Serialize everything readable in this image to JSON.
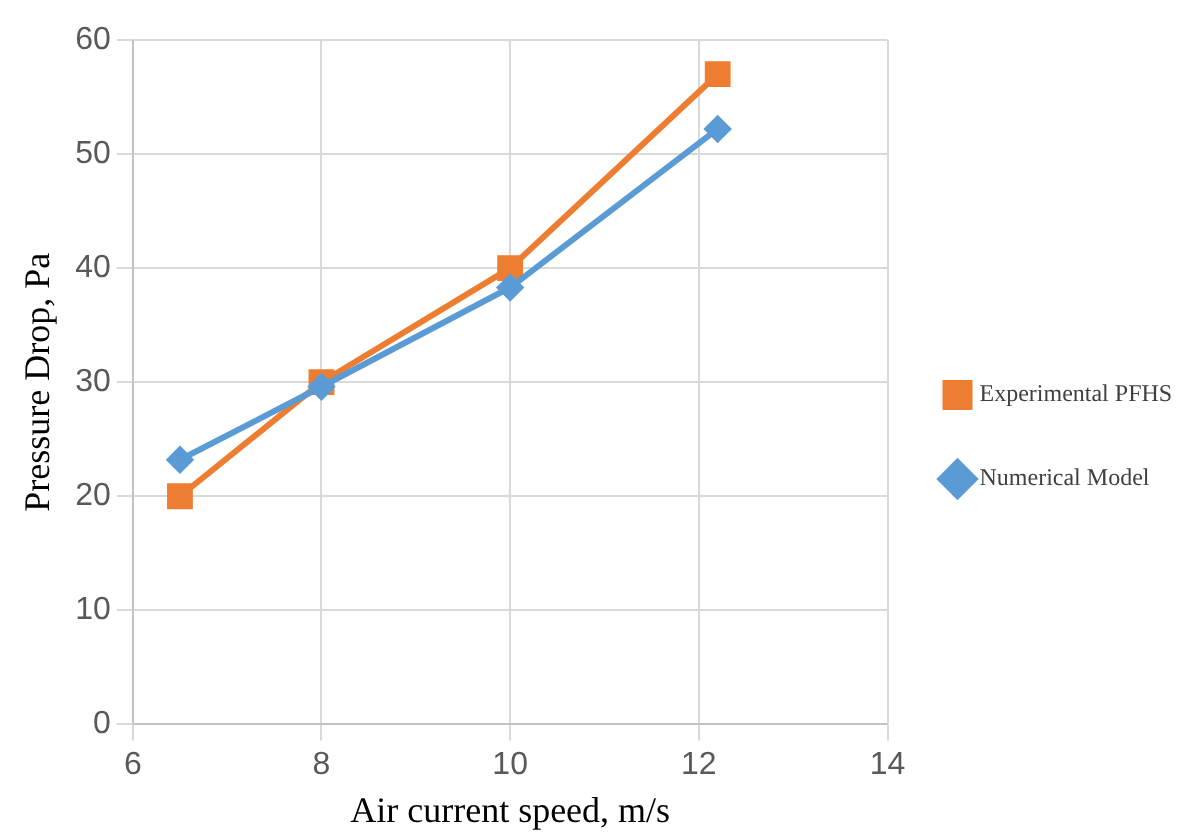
{
  "chart_data": {
    "type": "line",
    "xlabel": "Air current speed, m/s",
    "ylabel": "Pressure Drop, Pa",
    "x": [
      6.5,
      8,
      10,
      12.2
    ],
    "series": [
      {
        "name": "Experimental PFHS",
        "color": "#ed7d31",
        "marker": "square",
        "values": [
          20,
          30,
          40,
          57
        ]
      },
      {
        "name": "Numerical Model",
        "color": "#5b9bd5",
        "marker": "diamond",
        "values": [
          23.2,
          29.6,
          38.3,
          52.2
        ]
      }
    ],
    "xlim": [
      6,
      14
    ],
    "xticks": [
      6,
      8,
      10,
      12,
      14
    ],
    "ylim": [
      0,
      60
    ],
    "yticks": [
      0,
      10,
      20,
      30,
      40,
      50,
      60
    ],
    "grid": true,
    "legend": "right",
    "line_style": "solid"
  }
}
